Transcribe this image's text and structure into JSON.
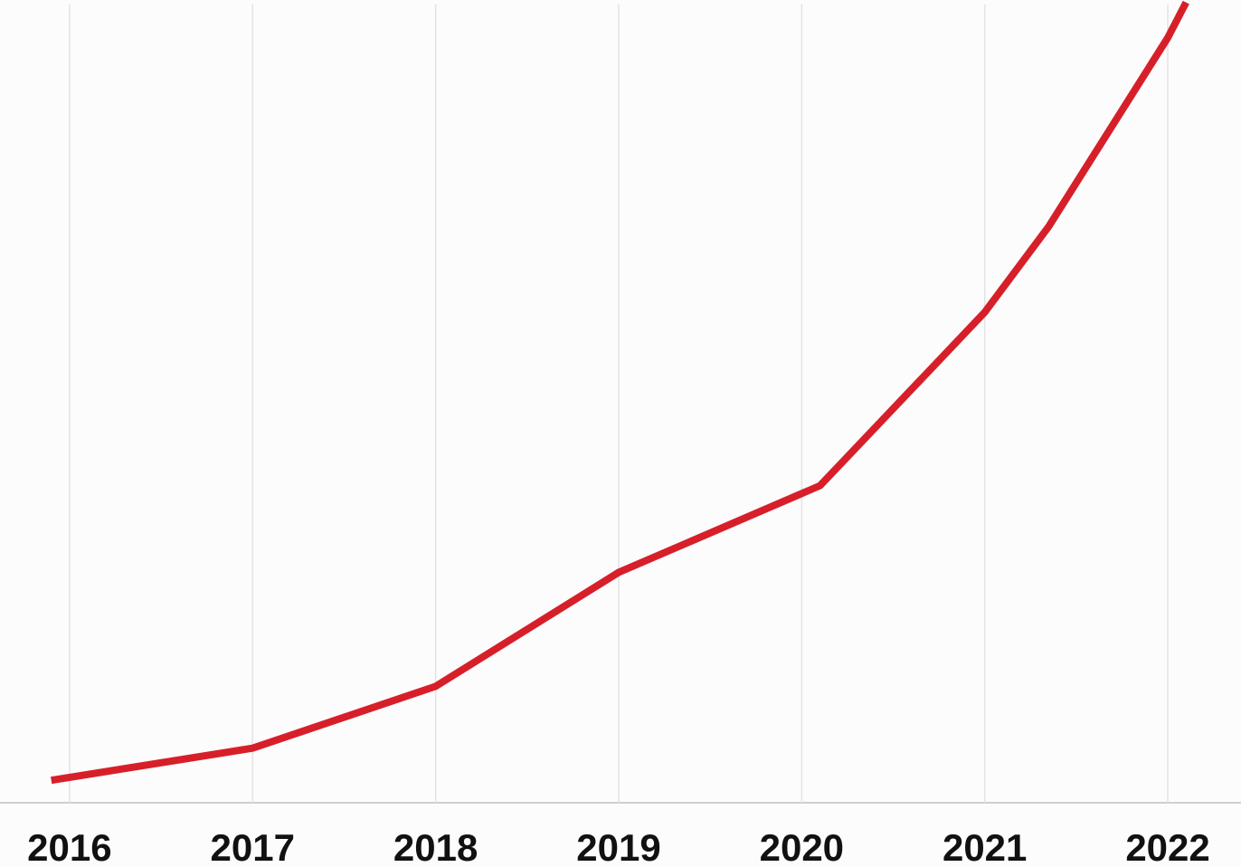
{
  "chart_data": {
    "type": "line",
    "x": [
      2015.9,
      2017,
      2018,
      2019,
      2020.1,
      2021,
      2021.35,
      2022,
      2022.1
    ],
    "series": [
      {
        "color": "#d71f2a",
        "values": [
          2.8,
          6.8,
          14.5,
          28.7,
          39.5,
          61.1,
          71.8,
          95.3,
          99.7
        ]
      }
    ],
    "xlim": [
      2015.62,
      2022.4
    ],
    "xticks": [
      2016,
      2017,
      2018,
      2019,
      2020,
      2021,
      2022
    ],
    "ylim": [
      0,
      100
    ],
    "grid": true
  }
}
